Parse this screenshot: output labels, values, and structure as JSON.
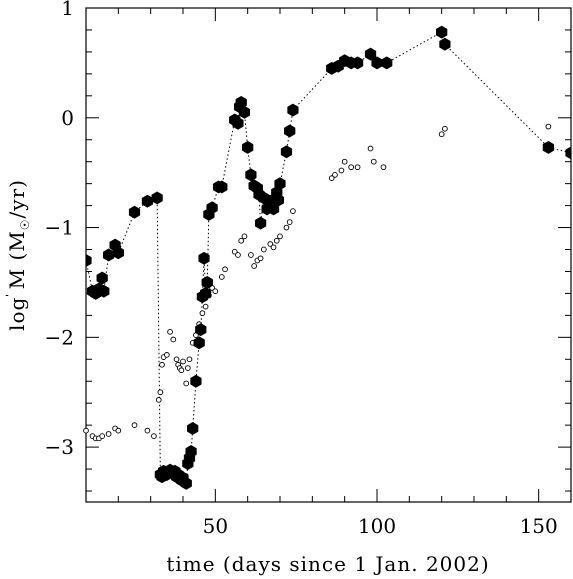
{
  "chart_data": {
    "type": "scatter",
    "xlabel": "time (days since 1 Jan. 2002)",
    "ylabel": "log Ṁ (M☉/yr)",
    "ylabel_parts": {
      "prefix": "log ",
      "mdot": "M",
      "open": " (M",
      "sun": "☉",
      "rest": "/yr)"
    },
    "xlim": [
      10,
      160
    ],
    "ylim": [
      -3.5,
      1.0
    ],
    "x_ticks": [
      50,
      100,
      150
    ],
    "y_ticks": [
      -3,
      -2,
      -1,
      0,
      1
    ],
    "x_tick_labels": [
      "50",
      "100",
      "150"
    ],
    "y_tick_labels": [
      "−3",
      "−2",
      "−1",
      "0",
      "1"
    ],
    "series": [
      {
        "marker": "filled-hexagon",
        "connected": true,
        "line_style": "dotted",
        "x": [
          10,
          12,
          13,
          14,
          15,
          15.5,
          17,
          19,
          20,
          25,
          29,
          32,
          33,
          33.5,
          34,
          35,
          36,
          37,
          37.5,
          38,
          38.5,
          39,
          39.5,
          40,
          41,
          41.5,
          42,
          42.5,
          43,
          44,
          45,
          45.5,
          46,
          46.5,
          47,
          47.5,
          48,
          49,
          51,
          52,
          56,
          57,
          57.5,
          58,
          59,
          60,
          61,
          62,
          63,
          63.5,
          64,
          65,
          66,
          67,
          68,
          69,
          69.5,
          70,
          72,
          73,
          74,
          86,
          88,
          90,
          92,
          94,
          98,
          100,
          103,
          120,
          121,
          153,
          160
        ],
        "y": [
          -1.3,
          -1.58,
          -1.6,
          -1.56,
          -1.46,
          -1.58,
          -1.25,
          -1.16,
          -1.23,
          -0.86,
          -0.76,
          -0.73,
          -3.25,
          -3.27,
          -3.22,
          -3.25,
          -3.21,
          -3.24,
          -3.22,
          -3.27,
          -3.25,
          -3.28,
          -3.3,
          -3.28,
          -3.33,
          -3.15,
          -3.1,
          -3.04,
          -2.83,
          -2.4,
          -2.05,
          -1.93,
          -1.63,
          -1.28,
          -1.6,
          -1.5,
          -0.88,
          -0.82,
          -0.63,
          -0.63,
          -0.02,
          -0.05,
          0.1,
          0.14,
          0.05,
          -0.27,
          -0.52,
          -0.62,
          -0.64,
          -0.7,
          -0.96,
          -0.73,
          -0.83,
          -0.76,
          -0.83,
          -0.68,
          -0.75,
          -0.6,
          -0.31,
          -0.12,
          0.07,
          0.45,
          0.47,
          0.52,
          0.5,
          0.5,
          0.58,
          0.5,
          0.5,
          0.78,
          0.67,
          -0.27,
          -0.32
        ]
      },
      {
        "marker": "open-circle",
        "connected": false,
        "x": [
          10,
          12,
          13,
          14,
          15,
          17,
          19,
          20,
          25,
          29,
          31,
          32.5,
          33,
          33.5,
          34,
          35,
          36,
          37,
          38,
          38.5,
          39,
          39.5,
          40,
          41,
          41.5,
          42,
          43,
          44,
          45,
          46,
          47,
          48,
          49,
          50,
          52,
          53,
          56,
          57,
          58,
          59,
          61,
          62,
          63,
          64,
          65,
          67,
          68,
          69,
          70,
          72,
          73,
          74,
          86,
          87,
          89,
          90,
          92,
          94,
          98,
          99,
          102,
          120,
          121,
          153
        ],
        "y": [
          -2.85,
          -2.9,
          -2.92,
          -2.92,
          -2.9,
          -2.88,
          -2.83,
          -2.85,
          -2.8,
          -2.85,
          -2.9,
          -2.57,
          -2.5,
          -2.25,
          -2.18,
          -2.16,
          -1.95,
          -2.02,
          -2.2,
          -2.25,
          -2.28,
          -2.3,
          -2.22,
          -2.42,
          -2.28,
          -2.2,
          -2.05,
          -1.98,
          -1.88,
          -1.78,
          -1.72,
          -1.62,
          -1.55,
          -1.58,
          -1.45,
          -1.38,
          -1.22,
          -1.25,
          -1.12,
          -1.08,
          -1.25,
          -1.35,
          -1.3,
          -1.28,
          -1.2,
          -1.15,
          -1.18,
          -1.12,
          -1.08,
          -1.0,
          -0.95,
          -0.85,
          -0.55,
          -0.52,
          -0.48,
          -0.4,
          -0.45,
          -0.45,
          -0.28,
          -0.4,
          -0.45,
          -0.15,
          -0.1,
          -0.08
        ]
      }
    ],
    "grid": false,
    "legend": "none"
  }
}
